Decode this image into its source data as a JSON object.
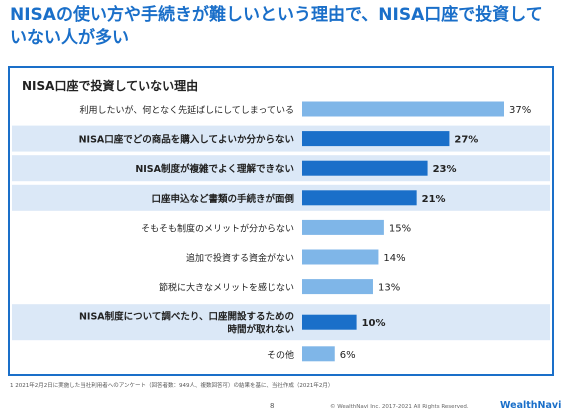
{
  "page": {
    "title": "NISAの使い方や手続きが難しいという理由で、NISA口座で投資していない人が多い",
    "footnote": "1 2021年2月2日に実施した当社利用者へのアンケート（回答者数：949人、複数回答可）の結果を基に、当社作成（2021年2月）",
    "page_number": "8",
    "copyright": "© WealthNavi Inc. 2017-2021 All Rights Reserved.",
    "brand": "WealthNavi"
  },
  "colors": {
    "accent": "#1a6fc9",
    "bar_light": "#7fb6e8",
    "bar_dark": "#1a6fc9",
    "highlight_row": "#dbe8f7"
  },
  "chart_data": {
    "type": "bar",
    "orientation": "horizontal",
    "title": "NISA口座で投資していない理由",
    "categories": [
      "利用したいが、何となく先延ばしにしてしまっている",
      "NISA口座でどの商品を購入してよいか分からない",
      "NISA制度が複雑でよく理解できない",
      "口座申込など書類の手続きが面倒",
      "そもそも制度のメリットが分からない",
      "追加で投資する資金がない",
      "節税に大きなメリットを感じない",
      "NISA制度について調べたり、口座開設するための時間が取れない",
      "その他"
    ],
    "category_lines": [
      [
        "利用したいが、何となく先延ばしにしてしまっている"
      ],
      [
        "NISA口座でどの商品を購入してよいか分からない"
      ],
      [
        "NISA制度が複雑でよく理解できない"
      ],
      [
        "口座申込など書類の手続きが面倒"
      ],
      [
        "そもそも制度のメリットが分からない"
      ],
      [
        "追加で投資する資金がない"
      ],
      [
        "節税に大きなメリットを感じない"
      ],
      [
        "NISA制度について調べたり、口座開設するための",
        "時間が取れない"
      ],
      [
        "その他"
      ]
    ],
    "values": [
      37,
      27,
      23,
      21,
      15,
      14,
      13,
      10,
      6
    ],
    "value_labels": [
      "37%",
      "27%",
      "23%",
      "21%",
      "15%",
      "14%",
      "13%",
      "10%",
      "6%"
    ],
    "highlighted": [
      false,
      true,
      true,
      true,
      false,
      false,
      false,
      true,
      false
    ],
    "xlim": [
      0,
      37
    ]
  }
}
